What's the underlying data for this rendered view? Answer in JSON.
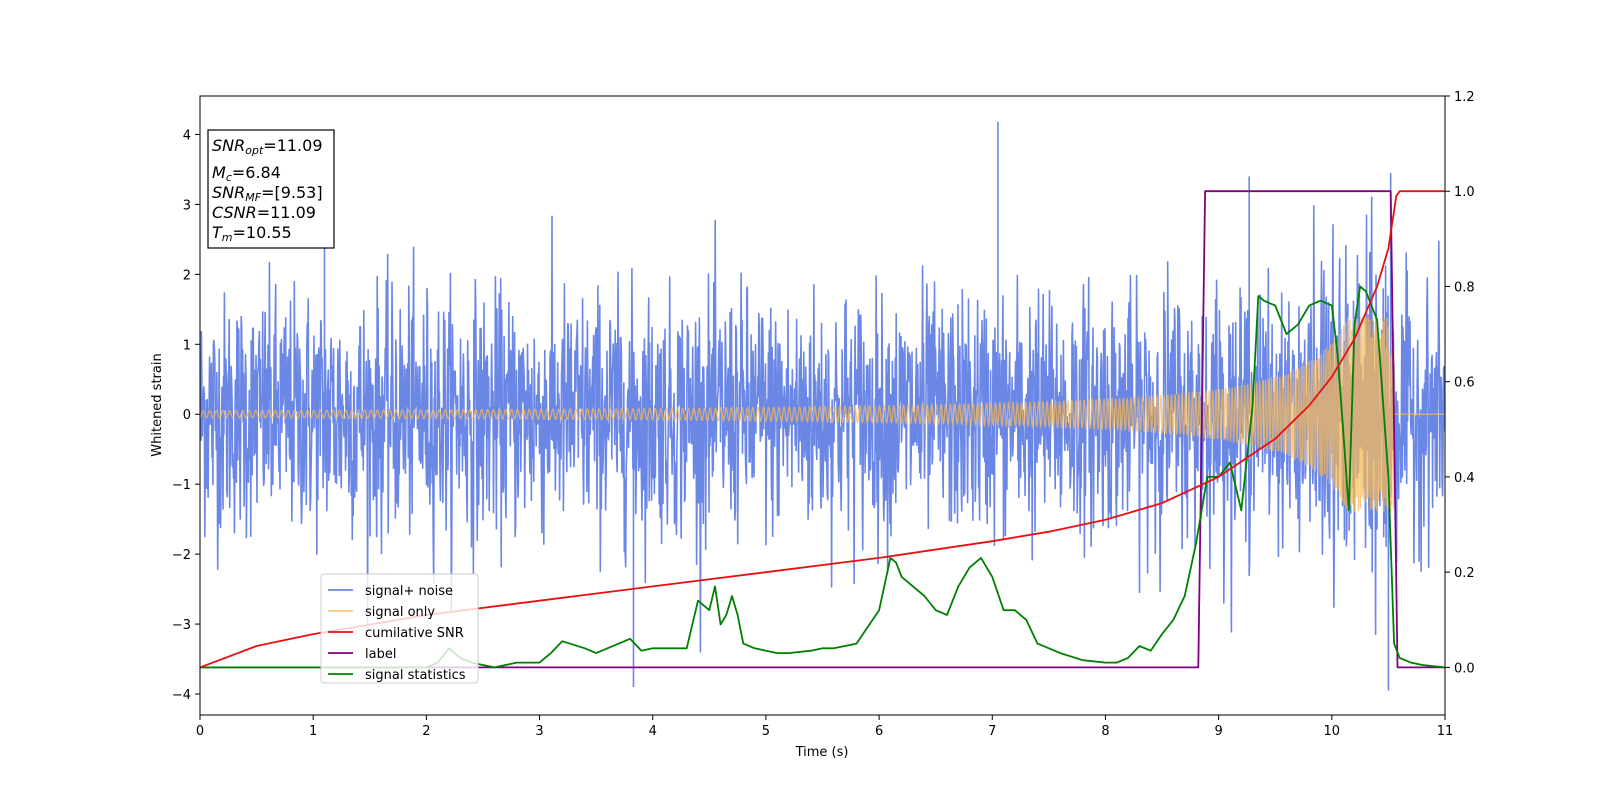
{
  "chart_data": {
    "type": "line",
    "xlabel": "Time (s)",
    "ylabel": "Whitened strain",
    "xlim": [
      0,
      11
    ],
    "ylim_left": [
      -4.3,
      4.55
    ],
    "ylim_right": [
      -0.1,
      1.2
    ],
    "x_ticks": [
      0,
      1,
      2,
      3,
      4,
      5,
      6,
      7,
      8,
      9,
      10,
      11
    ],
    "y_ticks_left": [
      -4,
      -3,
      -2,
      -1,
      0,
      1,
      2,
      3,
      4
    ],
    "y_ticks_right": [
      0.0,
      0.2,
      0.4,
      0.6,
      0.8,
      1.0,
      1.2
    ],
    "grid": false,
    "legend_position": "lower-left",
    "stats_box": {
      "snr_opt": {
        "sym": "SNR",
        "sub": "opt",
        "value": "=11.09"
      },
      "mc": {
        "sym": "M",
        "sub": "c",
        "value": "=6.84"
      },
      "snr_mf": {
        "sym": "SNR",
        "sub": "MF",
        "value": "=[9.53]"
      },
      "csnr": {
        "sym": "CSNR",
        "sub": "",
        "value": "=11.09"
      },
      "tm": {
        "sym": "T",
        "sub": "m",
        "value": "=10.55"
      }
    },
    "series": [
      {
        "name": "signal+ noise",
        "axis": "left",
        "color": "#6b87e6",
        "description_values": {
          "t_start": 0,
          "t_end": 11,
          "amplitude_std": 0.85,
          "max": 4.18,
          "min": -3.9
        }
      },
      {
        "name": "signal only",
        "axis": "left",
        "color": "#f5b95a",
        "chirp": {
          "t_start": 0,
          "t_merger": 10.55,
          "amp_start": 0.05,
          "amp_end": 1.4
        }
      },
      {
        "name": "cumilative SNR",
        "axis": "right",
        "color": "#e81010",
        "x": [
          0,
          0.5,
          1,
          2,
          3,
          4,
          5,
          6,
          7,
          7.5,
          8,
          8.5,
          9,
          9.5,
          9.8,
          10,
          10.2,
          10.4,
          10.5,
          10.57,
          10.6,
          11
        ],
        "y": [
          0.0,
          0.045,
          0.07,
          0.11,
          0.14,
          0.17,
          0.2,
          0.23,
          0.265,
          0.285,
          0.31,
          0.345,
          0.4,
          0.48,
          0.55,
          0.61,
          0.69,
          0.8,
          0.88,
          0.99,
          1.0,
          1.0
        ]
      },
      {
        "name": "label",
        "axis": "right",
        "color": "#800080",
        "x": [
          0,
          8.82,
          8.88,
          10.52,
          10.58,
          11
        ],
        "y": [
          0,
          0,
          1,
          1,
          0,
          0
        ]
      },
      {
        "name": "signal statistics",
        "axis": "right",
        "color": "#008000",
        "x": [
          0,
          0.5,
          1,
          1.5,
          2,
          2.1,
          2.2,
          2.3,
          2.4,
          2.5,
          2.6,
          2.8,
          3,
          3.1,
          3.2,
          3.4,
          3.5,
          3.7,
          3.8,
          3.9,
          4,
          4.1,
          4.3,
          4.4,
          4.5,
          4.55,
          4.6,
          4.65,
          4.7,
          4.75,
          4.8,
          4.9,
          5,
          5.1,
          5.2,
          5.4,
          5.5,
          5.6,
          5.8,
          5.9,
          6,
          6.1,
          6.15,
          6.2,
          6.3,
          6.4,
          6.5,
          6.6,
          6.7,
          6.8,
          6.9,
          7,
          7.1,
          7.2,
          7.3,
          7.4,
          7.5,
          7.6,
          7.8,
          8,
          8.1,
          8.2,
          8.3,
          8.4,
          8.5,
          8.6,
          8.7,
          8.8,
          8.9,
          9,
          9.1,
          9.2,
          9.3,
          9.35,
          9.4,
          9.5,
          9.6,
          9.7,
          9.8,
          9.9,
          10,
          10.05,
          10.1,
          10.15,
          10.2,
          10.25,
          10.3,
          10.4,
          10.5,
          10.55,
          10.6,
          10.7,
          10.8,
          11
        ],
        "y": [
          0.0,
          0.0,
          0.0,
          0.0,
          0.0,
          0.01,
          0.04,
          0.02,
          0.01,
          0.005,
          0.0,
          0.01,
          0.01,
          0.03,
          0.055,
          0.04,
          0.03,
          0.05,
          0.06,
          0.035,
          0.04,
          0.04,
          0.04,
          0.14,
          0.12,
          0.17,
          0.09,
          0.11,
          0.15,
          0.11,
          0.05,
          0.04,
          0.035,
          0.03,
          0.03,
          0.035,
          0.04,
          0.04,
          0.05,
          0.085,
          0.12,
          0.23,
          0.22,
          0.19,
          0.17,
          0.15,
          0.12,
          0.11,
          0.17,
          0.21,
          0.23,
          0.19,
          0.12,
          0.12,
          0.1,
          0.05,
          0.04,
          0.03,
          0.015,
          0.01,
          0.01,
          0.02,
          0.045,
          0.035,
          0.07,
          0.1,
          0.15,
          0.26,
          0.4,
          0.4,
          0.43,
          0.33,
          0.55,
          0.78,
          0.77,
          0.76,
          0.7,
          0.72,
          0.76,
          0.77,
          0.76,
          0.66,
          0.5,
          0.33,
          0.72,
          0.8,
          0.79,
          0.73,
          0.4,
          0.05,
          0.02,
          0.01,
          0.005,
          0.0
        ]
      }
    ]
  }
}
